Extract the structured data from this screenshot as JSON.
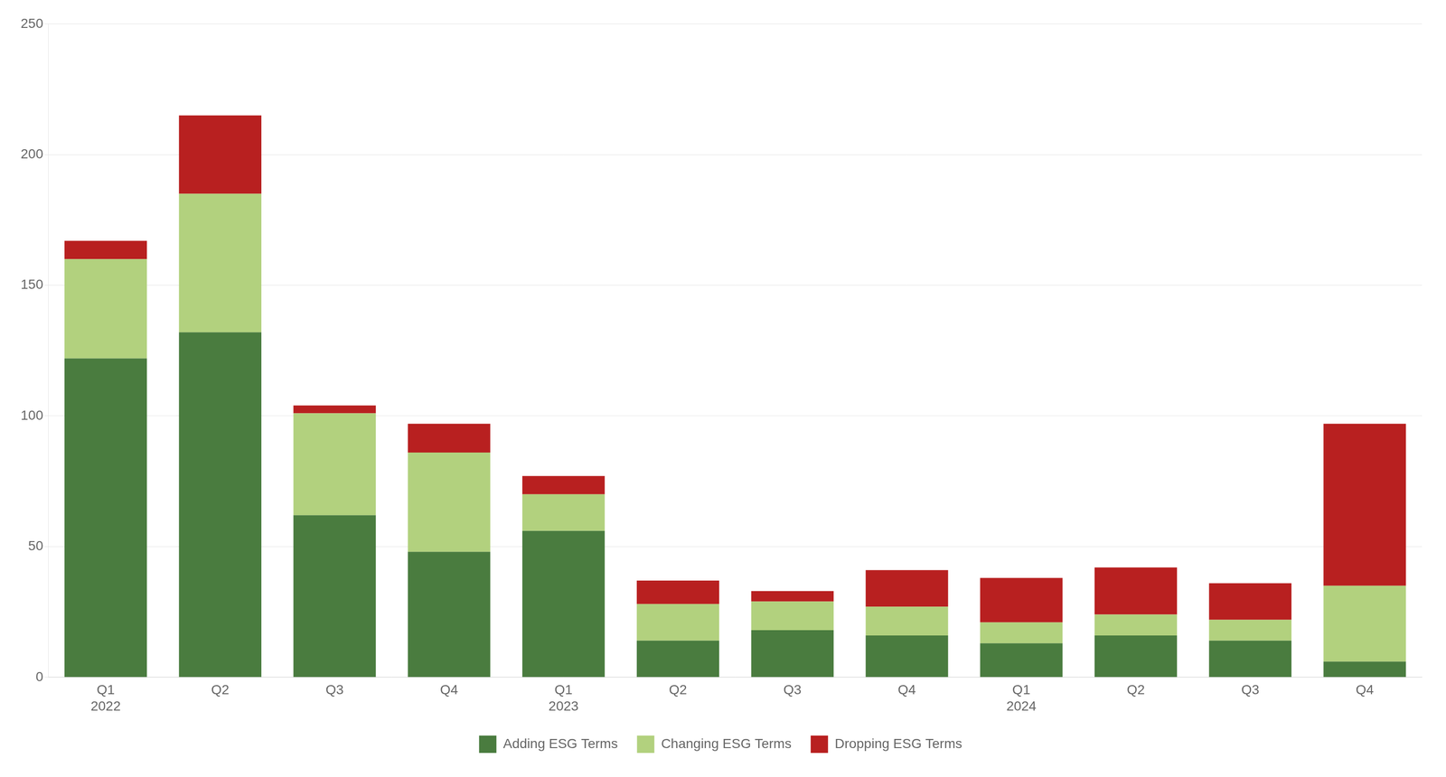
{
  "chart_data": {
    "type": "bar",
    "stacked": true,
    "categories": [
      "Q1\n2022",
      "Q2",
      "Q3",
      "Q4",
      "Q1\n2023",
      "Q2",
      "Q3",
      "Q4",
      "Q1\n2024",
      "Q2",
      "Q3",
      "Q4"
    ],
    "series": [
      {
        "name": "Adding ESG Terms",
        "color": "#4a7c3f",
        "values": [
          122,
          132,
          62,
          48,
          56,
          14,
          18,
          16,
          13,
          16,
          14,
          6
        ]
      },
      {
        "name": "Changing ESG Terms",
        "color": "#b2d17e",
        "values": [
          38,
          53,
          39,
          38,
          14,
          14,
          11,
          11,
          8,
          8,
          8,
          29
        ]
      },
      {
        "name": "Dropping ESG Terms",
        "color": "#b82020",
        "values": [
          7,
          30,
          3,
          11,
          7,
          9,
          4,
          14,
          17,
          18,
          14,
          62
        ]
      }
    ],
    "ylim": [
      0,
      250
    ],
    "yticks": [
      0,
      50,
      100,
      150,
      200,
      250
    ],
    "grid": true,
    "legend": "bottom"
  }
}
